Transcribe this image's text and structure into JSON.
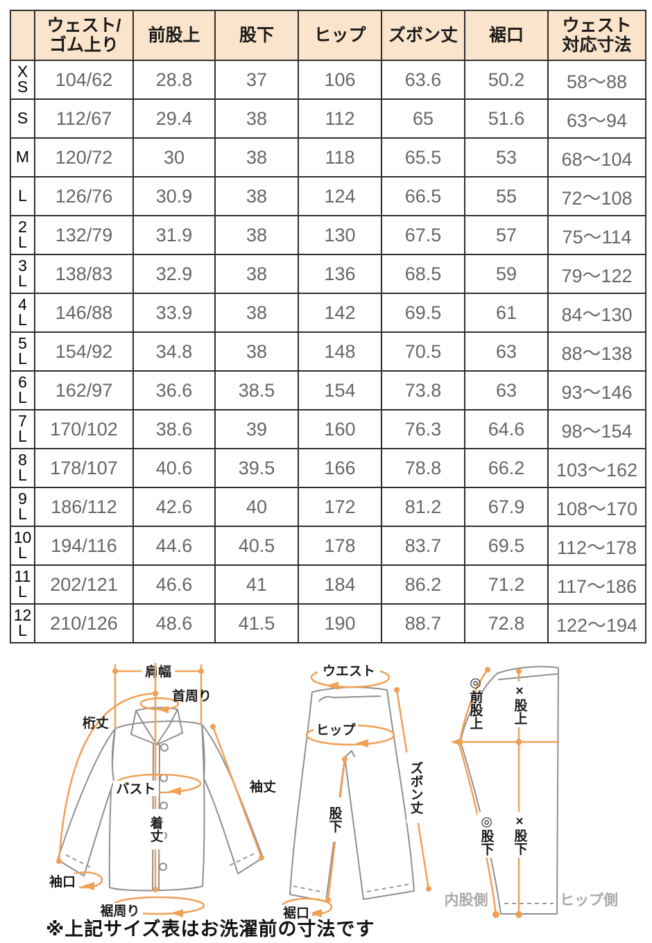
{
  "table": {
    "headers": [
      "",
      "ウェスト/\nゴム上り",
      "前股上",
      "股下",
      "ヒップ",
      "ズボン丈",
      "裾口",
      "ウェスト\n対応寸法"
    ],
    "rows": [
      {
        "size": "XS",
        "values": [
          "104/62",
          "28.8",
          "37",
          "106",
          "63.6",
          "50.2",
          "58〜88"
        ]
      },
      {
        "size": "S",
        "values": [
          "112/67",
          "29.4",
          "38",
          "112",
          "65",
          "51.6",
          "63〜94"
        ]
      },
      {
        "size": "M",
        "values": [
          "120/72",
          "30",
          "38",
          "118",
          "65.5",
          "53",
          "68〜104"
        ]
      },
      {
        "size": "L",
        "values": [
          "126/76",
          "30.9",
          "38",
          "124",
          "66.5",
          "55",
          "72〜108"
        ]
      },
      {
        "size": "2L",
        "values": [
          "132/79",
          "31.9",
          "38",
          "130",
          "67.5",
          "57",
          "75〜114"
        ]
      },
      {
        "size": "3L",
        "values": [
          "138/83",
          "32.9",
          "38",
          "136",
          "68.5",
          "59",
          "79〜122"
        ]
      },
      {
        "size": "4L",
        "values": [
          "146/88",
          "33.9",
          "38",
          "142",
          "69.5",
          "61",
          "84〜130"
        ]
      },
      {
        "size": "5L",
        "values": [
          "154/92",
          "34.8",
          "38",
          "148",
          "70.5",
          "63",
          "88〜138"
        ]
      },
      {
        "size": "6L",
        "values": [
          "162/97",
          "36.6",
          "38.5",
          "154",
          "73.8",
          "63",
          "93〜146"
        ]
      },
      {
        "size": "7L",
        "values": [
          "170/102",
          "38.6",
          "39",
          "160",
          "76.3",
          "64.6",
          "98〜154"
        ]
      },
      {
        "size": "8L",
        "values": [
          "178/107",
          "40.6",
          "39.5",
          "166",
          "78.8",
          "66.2",
          "103〜162"
        ]
      },
      {
        "size": "9L",
        "values": [
          "186/112",
          "42.6",
          "40",
          "172",
          "81.2",
          "67.9",
          "108〜170"
        ]
      },
      {
        "size": "10L",
        "values": [
          "194/116",
          "44.6",
          "40.5",
          "178",
          "83.7",
          "69.5",
          "112〜178"
        ]
      },
      {
        "size": "11L",
        "values": [
          "202/121",
          "46.6",
          "41",
          "184",
          "86.2",
          "71.2",
          "117〜186"
        ]
      },
      {
        "size": "12L",
        "values": [
          "210/126",
          "48.6",
          "41.5",
          "190",
          "88.7",
          "72.8",
          "122〜194"
        ]
      }
    ]
  },
  "diagrams": {
    "shirt": {
      "shoulder_width": "肩幅",
      "neck_around": "首周り",
      "yuki_length": "桁丈",
      "bust": "バスト",
      "sleeve_length": "袖丈",
      "body_length": "着丈",
      "cuff_opening": "袖口",
      "hem_around": "裾周り"
    },
    "pants_front": {
      "waist": "ウエスト",
      "hip": "ヒップ",
      "pants_length": "ズボン丈",
      "inseam": "股下",
      "hem_opening": "裾口"
    },
    "pants_side": {
      "front_rise": "◎前股上",
      "rise": "×股上",
      "inseam_circle": "◎股下",
      "inseam_x": "×股下",
      "inner_leg_side": "内股側",
      "hip_side": "ヒップ側"
    }
  },
  "note": "※上記サイズ表はお洗濯前の寸法です",
  "colors": {
    "header_bg": "#fae5cc",
    "accent_orange": "#f0a055",
    "table_text": "#666666",
    "border": "#2e2e2e",
    "garment_outline": "#8f8f8f",
    "muted_label": "#a9a9a9"
  }
}
